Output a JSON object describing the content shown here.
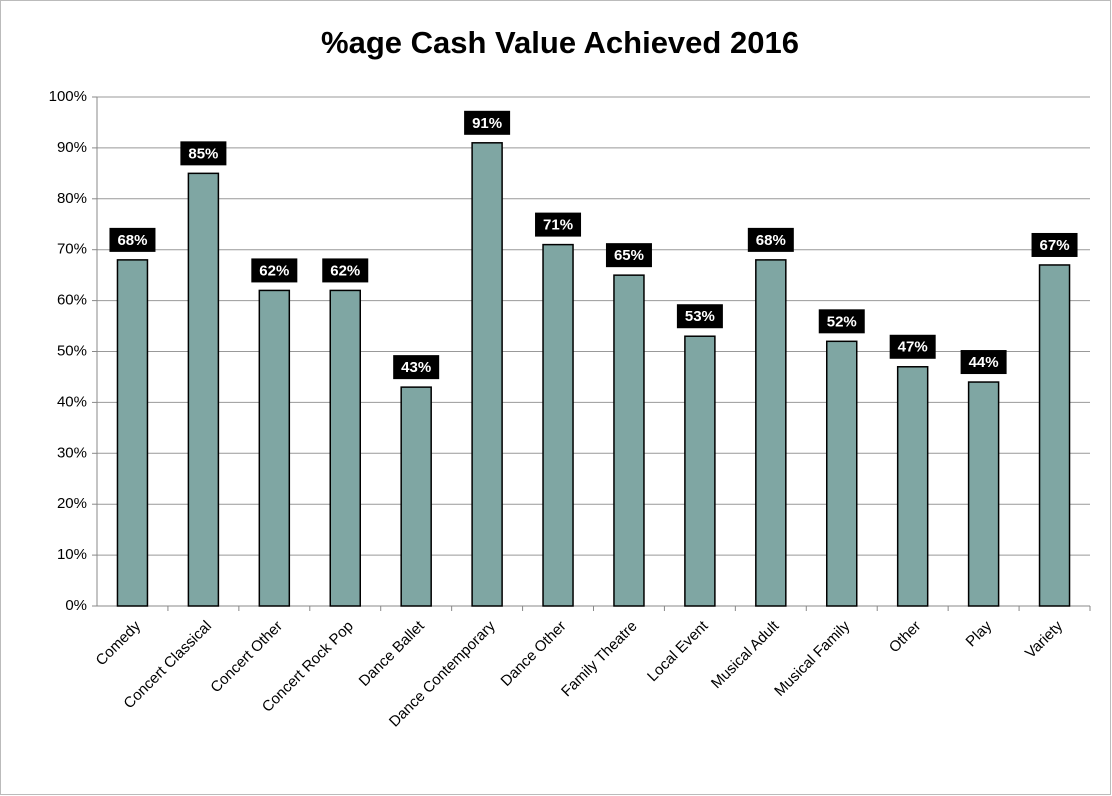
{
  "chart_data": {
    "type": "bar",
    "title": "%age Cash Value Achieved 2016",
    "categories": [
      "Comedy",
      "Concert Classical",
      "Concert Other",
      "Concert Rock Pop",
      "Dance Ballet",
      "Dance Contemporary",
      "Dance Other",
      "Family Theatre",
      "Local Event",
      "Musical Adult",
      "Musical Family",
      "Other",
      "Play",
      "Variety"
    ],
    "values": [
      68,
      85,
      62,
      62,
      43,
      91,
      71,
      65,
      53,
      68,
      52,
      47,
      44,
      67
    ],
    "value_labels": [
      "68%",
      "85%",
      "62%",
      "62%",
      "43%",
      "91%",
      "71%",
      "65%",
      "53%",
      "68%",
      "52%",
      "47%",
      "44%",
      "67%"
    ],
    "color": "#7fa6a3",
    "ylim": [
      0,
      100
    ],
    "yticks": [
      {
        "value": 0,
        "label": "0%"
      },
      {
        "value": 10,
        "label": "10%"
      },
      {
        "value": 20,
        "label": "20%"
      },
      {
        "value": 30,
        "label": "30%"
      },
      {
        "value": 40,
        "label": "40%"
      },
      {
        "value": 50,
        "label": "50%"
      },
      {
        "value": 60,
        "label": "60%"
      },
      {
        "value": 70,
        "label": "70%"
      },
      {
        "value": 80,
        "label": "80%"
      },
      {
        "value": 90,
        "label": "90%"
      },
      {
        "value": 100,
        "label": "100%"
      }
    ],
    "grid": true
  }
}
